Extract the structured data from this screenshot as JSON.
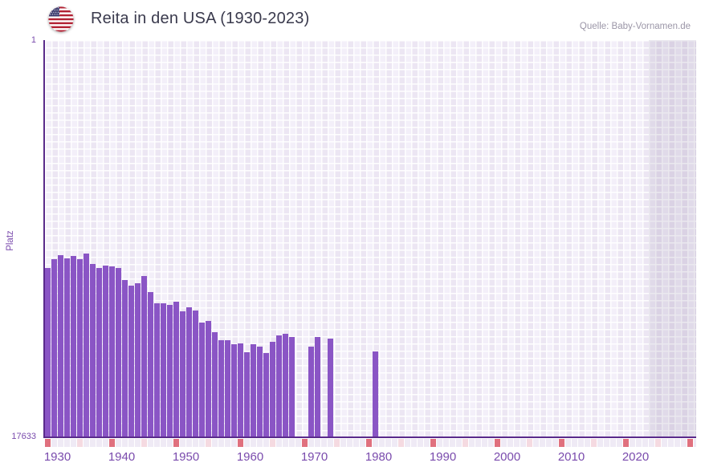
{
  "header": {
    "title": "Reita in den USA (1930-2023)",
    "source": "Quelle: Baby-Vornamen.de",
    "flag_icon": "us-flag"
  },
  "chart_data": {
    "type": "bar",
    "title": "Reita in den USA (1930-2023)",
    "xlabel": "",
    "ylabel": "Platz",
    "grid": true,
    "legend": null,
    "y_axis": {
      "top_label": "1",
      "bottom_label": "17633",
      "min": 1,
      "max": 17633,
      "inverted": true,
      "scale": "linear"
    },
    "x_axis": {
      "data_start_year": 1930,
      "data_end_year": 2023,
      "plot_end_year": 2031,
      "label_years": [
        1930,
        1940,
        1950,
        1960,
        1970,
        1980,
        1990,
        2000,
        2010,
        2020
      ],
      "decade_marker_years": [
        1930,
        1940,
        1950,
        1960,
        1970,
        1980,
        1990,
        2000,
        2010,
        2020,
        2030
      ],
      "half_decade_marker_years": [
        1935,
        1945,
        1955,
        1965,
        1975,
        1985,
        1995,
        2005,
        2015,
        2025
      ]
    },
    "series_name": "Platz (rank, estimated from bar heights)",
    "points": [
      {
        "year": 1930,
        "rank": 10150
      },
      {
        "year": 1931,
        "rank": 9730
      },
      {
        "year": 1932,
        "rank": 9560
      },
      {
        "year": 1933,
        "rank": 9710
      },
      {
        "year": 1934,
        "rank": 9590
      },
      {
        "year": 1935,
        "rank": 9730
      },
      {
        "year": 1936,
        "rank": 9500
      },
      {
        "year": 1937,
        "rank": 9940
      },
      {
        "year": 1938,
        "rank": 10150
      },
      {
        "year": 1939,
        "rank": 10040
      },
      {
        "year": 1940,
        "rank": 10060
      },
      {
        "year": 1941,
        "rank": 10150
      },
      {
        "year": 1942,
        "rank": 10660
      },
      {
        "year": 1943,
        "rank": 10930
      },
      {
        "year": 1944,
        "rank": 10800
      },
      {
        "year": 1945,
        "rank": 10480
      },
      {
        "year": 1946,
        "rank": 11220
      },
      {
        "year": 1947,
        "rank": 11720
      },
      {
        "year": 1948,
        "rank": 11720
      },
      {
        "year": 1949,
        "rank": 11760
      },
      {
        "year": 1950,
        "rank": 11640
      },
      {
        "year": 1951,
        "rank": 12050
      },
      {
        "year": 1952,
        "rank": 11900
      },
      {
        "year": 1953,
        "rank": 12020
      },
      {
        "year": 1954,
        "rank": 12560
      },
      {
        "year": 1955,
        "rank": 12490
      },
      {
        "year": 1956,
        "rank": 13000
      },
      {
        "year": 1957,
        "rank": 13360
      },
      {
        "year": 1958,
        "rank": 13360
      },
      {
        "year": 1959,
        "rank": 13510
      },
      {
        "year": 1960,
        "rank": 13480
      },
      {
        "year": 1961,
        "rank": 13870
      },
      {
        "year": 1962,
        "rank": 13510
      },
      {
        "year": 1963,
        "rank": 13630
      },
      {
        "year": 1964,
        "rank": 13930
      },
      {
        "year": 1965,
        "rank": 13420
      },
      {
        "year": 1966,
        "rank": 13120
      },
      {
        "year": 1967,
        "rank": 13080
      },
      {
        "year": 1968,
        "rank": 13210
      },
      {
        "year": 1971,
        "rank": 13650
      },
      {
        "year": 1972,
        "rank": 13210
      },
      {
        "year": 1974,
        "rank": 13280
      },
      {
        "year": 1981,
        "rank": 13850
      }
    ]
  },
  "colors": {
    "bar": "#8a55c5",
    "axis": "#5a2b8b",
    "axis_label": "#7a4bad",
    "title": "#3a3a4d",
    "source": "#9b96a7",
    "grid_cell_a": "#f3eff9",
    "grid_cell_b": "#ece6f3",
    "strip_default": "#efeaf5",
    "strip_decade": "#e0707e",
    "strip_half_decade": "#f5dae1",
    "flag_red": "#b22234",
    "flag_blue": "#3c3b6e"
  }
}
